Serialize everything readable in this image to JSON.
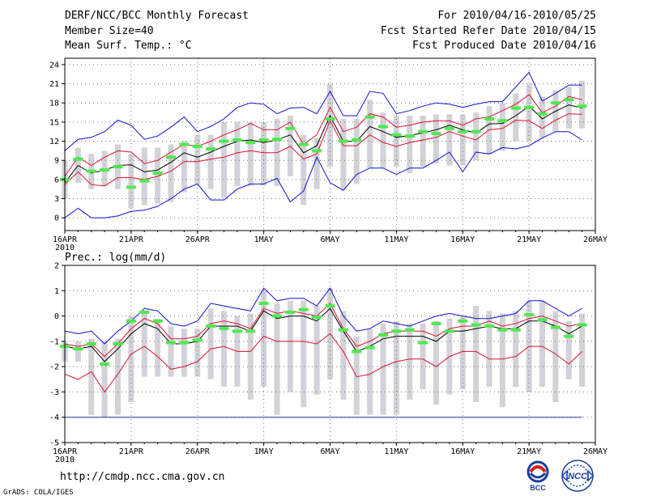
{
  "header": {
    "title": "DERF/NCC/BCC Monthly Forecast",
    "member_size": "Member Size=40",
    "variable": "Mean Surf. Temp.: °C",
    "period": "For 2010/04/16-2010/05/25",
    "refer_date": "Fcst Started Refer Date 2010/04/15",
    "produced_date": "Fcst Produced Date 2010/04/16"
  },
  "footer": {
    "url": "http://cmdp.ncc.cma.gov.cn",
    "credit": "GrADS: COLA/IGES",
    "logo_bcc": "BCC",
    "logo_ncc": "NCC"
  },
  "colors": {
    "envelope": "#1010d0",
    "spread": "#e01030",
    "mean": "#000000",
    "box": "#d2d2d8",
    "obs": "#50e850",
    "baseline": "#3030a0"
  },
  "chart_data": [
    {
      "type": "line",
      "title": "Mean Surf. Temp.: °C",
      "xlabel": "",
      "ylabel": "",
      "xlim": [
        1,
        40
      ],
      "ylim": [
        -2,
        25
      ],
      "yticks": [
        0,
        3,
        6,
        9,
        12,
        15,
        18,
        21,
        24
      ],
      "grid": true,
      "x_tick_labels": [
        {
          "day": 1,
          "label": "16APR",
          "sub": "2010"
        },
        {
          "day": 6,
          "label": "21APR"
        },
        {
          "day": 11,
          "label": "26APR"
        },
        {
          "day": 16,
          "label": "1MAY"
        },
        {
          "day": 21,
          "label": "6MAY"
        },
        {
          "day": 26,
          "label": "11MAY"
        },
        {
          "day": 31,
          "label": "16MAY"
        },
        {
          "day": 36,
          "label": "21MAY"
        },
        {
          "day": 41,
          "label": "26MAY"
        }
      ],
      "series": [
        {
          "name": "max",
          "values": [
            10.5,
            12.3,
            12.6,
            13.5,
            15.3,
            14.5,
            12.3,
            12.8,
            14.2,
            15.8,
            13.5,
            14.3,
            15.5,
            17.3,
            18,
            17.8,
            16.3,
            17.2,
            17.3,
            16.3,
            19.8,
            16,
            16,
            19.8,
            19.5,
            16.3,
            16.8,
            17.5,
            18,
            17.8,
            17.3,
            17.8,
            18.2,
            18.2,
            20.5,
            22.8,
            18.3,
            19.5,
            20.8,
            20.8
          ]
        },
        {
          "name": "upper",
          "values": [
            6.5,
            9.5,
            8.2,
            9.5,
            10.5,
            10.3,
            8.5,
            9,
            10.3,
            11.5,
            11.2,
            12,
            13,
            13.8,
            14.8,
            13.8,
            13.8,
            15,
            11.5,
            13,
            17.3,
            13.5,
            14.2,
            16.3,
            15.8,
            14.2,
            14.5,
            15,
            15.2,
            15.2,
            14.5,
            15.5,
            15.8,
            16.8,
            17.8,
            19.3,
            16.5,
            17.5,
            19,
            18.5
          ]
        },
        {
          "name": "mean",
          "values": [
            5.5,
            8.2,
            7,
            7.5,
            8.2,
            8.3,
            7.2,
            7.5,
            8.7,
            10.2,
            9.5,
            10.3,
            11.2,
            12,
            12.2,
            11.8,
            12.2,
            13,
            10.2,
            11.3,
            16,
            12,
            12,
            14.3,
            13.5,
            12.6,
            12.9,
            13.3,
            13.8,
            14.5,
            13.8,
            13.3,
            14.7,
            14.8,
            16,
            17.5,
            15.5,
            16.7,
            17.7,
            17.2
          ]
        },
        {
          "name": "lower",
          "values": [
            5.2,
            7.2,
            5.2,
            5,
            6.3,
            6.3,
            6,
            6.5,
            7.3,
            8.8,
            8.8,
            9.2,
            9.5,
            10.2,
            10.5,
            10.2,
            10.2,
            11.2,
            9.2,
            10,
            15.2,
            11.3,
            11.3,
            13,
            11.8,
            11.2,
            11.8,
            12.2,
            12.6,
            13.5,
            12.8,
            12.2,
            13.8,
            14,
            15.3,
            15.2,
            14,
            15.3,
            16.3,
            16.2
          ]
        },
        {
          "name": "min",
          "values": [
            0,
            1.5,
            0,
            0,
            0.3,
            1,
            1.2,
            1.8,
            3,
            4.5,
            5.3,
            2.8,
            2.8,
            4.5,
            5.3,
            5.3,
            6.2,
            2.5,
            4.2,
            9.5,
            5.5,
            4.3,
            6.8,
            7.8,
            7.8,
            6.8,
            7.8,
            7.8,
            9,
            10.3,
            7.2,
            10.3,
            10,
            11,
            10.8,
            11.3,
            12.5,
            13.5,
            13.5,
            12.2
          ]
        }
      ],
      "boxes": [
        [
          3,
          9
        ],
        [
          5.5,
          11
        ],
        [
          4.5,
          10
        ],
        [
          5,
          10.5
        ],
        [
          4.5,
          11.5
        ],
        [
          1.5,
          10
        ],
        [
          2,
          11
        ],
        [
          2.2,
          11
        ],
        [
          2.5,
          11.5
        ],
        [
          4,
          12
        ],
        [
          5.2,
          13
        ],
        [
          4.5,
          13
        ],
        [
          3.2,
          15
        ],
        [
          5,
          15
        ],
        [
          5,
          15
        ],
        [
          5,
          15
        ],
        [
          5,
          15.5
        ],
        [
          6.5,
          16
        ],
        [
          2,
          13
        ],
        [
          4.5,
          12.5
        ],
        [
          8,
          21
        ],
        [
          4.5,
          15.5
        ],
        [
          5.3,
          15.5
        ],
        [
          7.8,
          18.5
        ],
        [
          7.8,
          16.5
        ],
        [
          8,
          16
        ],
        [
          7,
          16
        ],
        [
          8,
          16
        ],
        [
          8.5,
          16.2
        ],
        [
          8.2,
          16.2
        ],
        [
          8.2,
          16.2
        ],
        [
          9,
          16.5
        ],
        [
          10,
          17.5
        ],
        [
          10.5,
          18
        ],
        [
          12,
          19.5
        ],
        [
          12,
          21
        ],
        [
          12.5,
          19
        ],
        [
          13.5,
          20
        ],
        [
          14,
          20.5
        ],
        [
          14,
          21.5
        ]
      ],
      "observed": [
        6,
        9.2,
        7.3,
        7.5,
        8,
        4.8,
        5.8,
        7,
        9.5,
        11.5,
        11.2,
        10.8,
        12,
        12.2,
        11.8,
        12.2,
        12.3,
        14,
        11.5,
        10.5,
        15.5,
        12,
        12.2,
        15.8,
        14.3,
        13,
        12.8,
        13.5,
        13.2,
        14,
        13.5,
        13.5,
        15.5,
        15.2,
        17.2,
        17.3,
        16.3,
        18,
        18.5,
        17.5
      ]
    },
    {
      "type": "line",
      "title": "Prec.: log(mm/d)",
      "xlabel": "",
      "ylabel": "",
      "xlim": [
        1,
        40
      ],
      "ylim": [
        -5,
        2
      ],
      "yticks": [
        -5,
        -4,
        -3,
        -2,
        -1,
        0,
        1,
        2
      ],
      "grid": true,
      "baseline": -4,
      "x_tick_labels": [
        {
          "day": 1,
          "label": "16APR",
          "sub": "2010"
        },
        {
          "day": 6,
          "label": "21APR"
        },
        {
          "day": 11,
          "label": "26APR"
        },
        {
          "day": 16,
          "label": "1MAY"
        },
        {
          "day": 21,
          "label": "6MAY"
        },
        {
          "day": 26,
          "label": "11MAY"
        },
        {
          "day": 31,
          "label": "16MAY"
        },
        {
          "day": 36,
          "label": "21MAY"
        },
        {
          "day": 41,
          "label": "26MAY"
        }
      ],
      "series": [
        {
          "name": "max",
          "values": [
            -0.6,
            -0.7,
            -0.6,
            -1.1,
            -0.6,
            -0.2,
            0.3,
            0.2,
            -0.3,
            -0.4,
            -0.2,
            0.5,
            0.4,
            0.3,
            0.2,
            1.1,
            0.6,
            0.7,
            0.7,
            0.4,
            1.1,
            0,
            -0.6,
            -0.5,
            -0.2,
            -0.3,
            -0.4,
            -0.2,
            0,
            0.1,
            0,
            -0.1,
            -0.1,
            0,
            0.1,
            0.6,
            0.6,
            0.3,
            0,
            0.3
          ]
        },
        {
          "name": "upper",
          "values": [
            -1.1,
            -1.2,
            -1.1,
            -1.6,
            -1.1,
            -0.5,
            -0.1,
            -0.3,
            -0.9,
            -0.9,
            -0.8,
            -0.3,
            -0.2,
            -0.3,
            -0.5,
            0.3,
            0.1,
            0.2,
            0.1,
            0,
            0.5,
            -0.5,
            -1.2,
            -1.0,
            -0.7,
            -0.6,
            -0.6,
            -0.6,
            -0.8,
            -0.5,
            -0.4,
            -0.4,
            -0.2,
            -0.4,
            -0.3,
            -0.1,
            0,
            -0.2,
            -0.4,
            -0.3
          ]
        },
        {
          "name": "mean",
          "values": [
            -1.2,
            -1.3,
            -1.2,
            -1.8,
            -1.3,
            -0.7,
            -0.3,
            -0.5,
            -1.1,
            -1.1,
            -1,
            -0.4,
            -0.4,
            -0.4,
            -0.6,
            0.2,
            -0.1,
            0,
            0,
            -0.2,
            0.3,
            -0.6,
            -1.4,
            -1.2,
            -0.9,
            -0.8,
            -0.8,
            -0.8,
            -1,
            -0.6,
            -0.6,
            -0.5,
            -0.4,
            -0.5,
            -0.5,
            -0.2,
            -0.2,
            -0.4,
            -0.7,
            -0.4
          ]
        },
        {
          "name": "lower",
          "values": [
            -2.3,
            -2.5,
            -2.2,
            -3,
            -2.3,
            -1.5,
            -1.2,
            -1.6,
            -2.1,
            -2,
            -1.8,
            -1.3,
            -1.2,
            -1.4,
            -1.4,
            -0.8,
            -1,
            -1,
            -1,
            -1.1,
            -0.7,
            -1.4,
            -2.4,
            -2.3,
            -2,
            -1.8,
            -1.7,
            -1.7,
            -2,
            -1.6,
            -1.4,
            -1.4,
            -1.7,
            -1.7,
            -1.6,
            -1.2,
            -1.2,
            -1.5,
            -1.9,
            -1.4
          ]
        },
        {
          "name": "min",
          "values": [
            -4,
            -4,
            -4,
            -4,
            -4,
            -4,
            -4,
            -4,
            -4,
            -4,
            -4,
            -4,
            -4,
            -4,
            -4,
            -4,
            -4,
            -4,
            -4,
            -4,
            -4,
            -4,
            -4,
            -4,
            -4,
            -4,
            -4,
            -4,
            -4,
            -4,
            -4,
            -4,
            -4,
            -4,
            -4,
            -4,
            -4,
            -4,
            -4,
            -4
          ]
        }
      ],
      "boxes": [
        [
          -1.8,
          -1
        ],
        [
          -1.8,
          -1
        ],
        [
          -3.9,
          -0.9
        ],
        [
          -4,
          -1
        ],
        [
          -3.9,
          -0.9
        ],
        [
          -3.4,
          0
        ],
        [
          -2.4,
          0.1
        ],
        [
          -2.4,
          -0.1
        ],
        [
          -2.4,
          -0.4
        ],
        [
          -2.4,
          -0.5
        ],
        [
          -2.4,
          -0.5
        ],
        [
          -2.5,
          0.3
        ],
        [
          -2.8,
          0.2
        ],
        [
          -2.8,
          0
        ],
        [
          -3.3,
          0.1
        ],
        [
          -2.8,
          1
        ],
        [
          -3.9,
          0.5
        ],
        [
          -3,
          0.6
        ],
        [
          -3.6,
          0.6
        ],
        [
          -3.1,
          0.4
        ],
        [
          -2.5,
          1.1
        ],
        [
          -3.3,
          0.2
        ],
        [
          -3.9,
          -0.8
        ],
        [
          -3.9,
          -0.5
        ],
        [
          -3.9,
          -0.3
        ],
        [
          -3.9,
          -0.2
        ],
        [
          -3.3,
          -0.3
        ],
        [
          -2.9,
          -0.3
        ],
        [
          -3.5,
          -0.2
        ],
        [
          -3.1,
          -0.1
        ],
        [
          -2.9,
          0
        ],
        [
          -3.4,
          0.4
        ],
        [
          -2.8,
          0.2
        ],
        [
          -3.6,
          0.1
        ],
        [
          -2.8,
          0.2
        ],
        [
          -3,
          0.6
        ],
        [
          -2.8,
          0.6
        ],
        [
          -3.4,
          0.2
        ],
        [
          -2.5,
          -0.2
        ],
        [
          -2.8,
          0.1
        ]
      ],
      "observed": [
        -1.2,
        -1.3,
        -1.1,
        -1.9,
        -1.1,
        -0.2,
        0.15,
        -0.2,
        -1.05,
        -1.05,
        -0.95,
        -0.4,
        -0.5,
        -0.6,
        -0.6,
        0.5,
        0,
        0.15,
        0.25,
        -0.05,
        0.4,
        -0.55,
        -1.4,
        -1.25,
        -0.75,
        -0.6,
        -0.55,
        -1.05,
        -0.3,
        -0.6,
        -0.2,
        -0.35,
        -0.4,
        -0.55,
        -0.55,
        0.05,
        -0.15,
        -0.45,
        -0.8,
        -0.35
      ]
    }
  ]
}
